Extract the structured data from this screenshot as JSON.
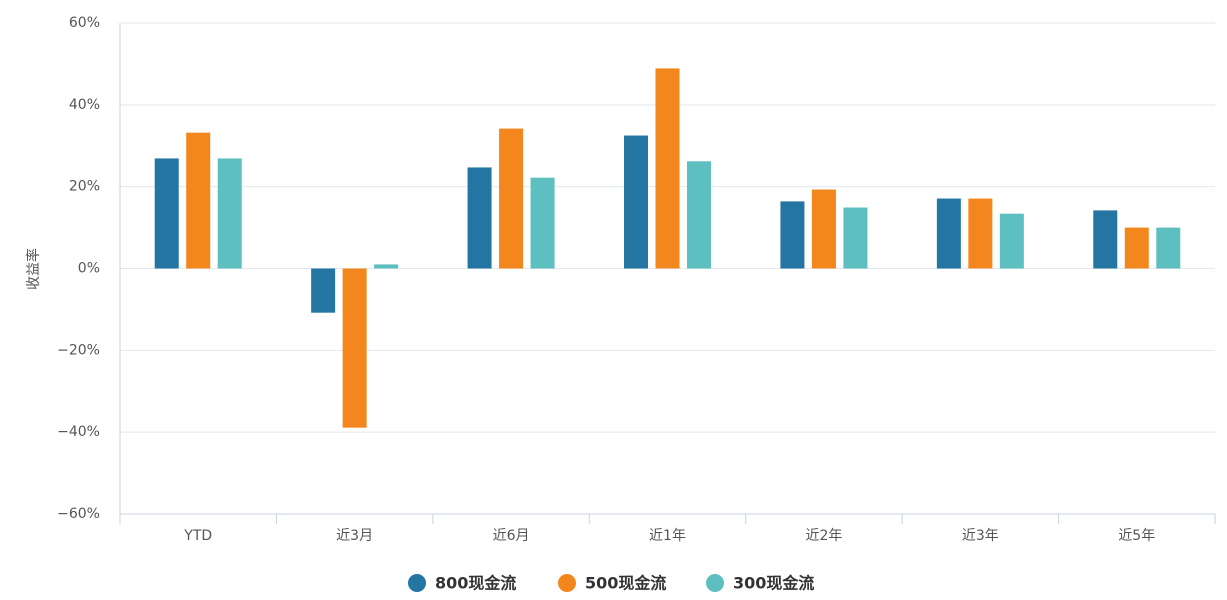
{
  "chart_data": {
    "type": "bar",
    "y_label": "收益率",
    "categories": [
      "YTD",
      "近3月",
      "近6月",
      "近1年",
      "近2年",
      "近3年",
      "近5年"
    ],
    "series": [
      {
        "name": "800现金流",
        "color": "#2475a2",
        "values": [
          26.9,
          -10.8,
          24.7,
          32.5,
          16.4,
          17.1,
          14.2
        ]
      },
      {
        "name": "500现金流",
        "color": "#f4861e",
        "values": [
          33.2,
          -38.9,
          34.2,
          48.9,
          19.3,
          17.1,
          10
        ]
      },
      {
        "name": "300现金流",
        "color": "#5dbfc0",
        "values": [
          26.9,
          1,
          22.2,
          26.2,
          14.9,
          13.4,
          10
        ]
      }
    ],
    "ylim": [
      -60,
      60
    ],
    "yticks": [
      {
        "value": -60,
        "label": "−60%"
      },
      {
        "value": -40,
        "label": "−40%"
      },
      {
        "value": -20,
        "label": "−20%"
      },
      {
        "value": 0,
        "label": "0%"
      },
      {
        "value": 20,
        "label": "20%"
      },
      {
        "value": 40,
        "label": "40%"
      },
      {
        "value": 60,
        "label": "60%"
      }
    ],
    "grid": true
  }
}
